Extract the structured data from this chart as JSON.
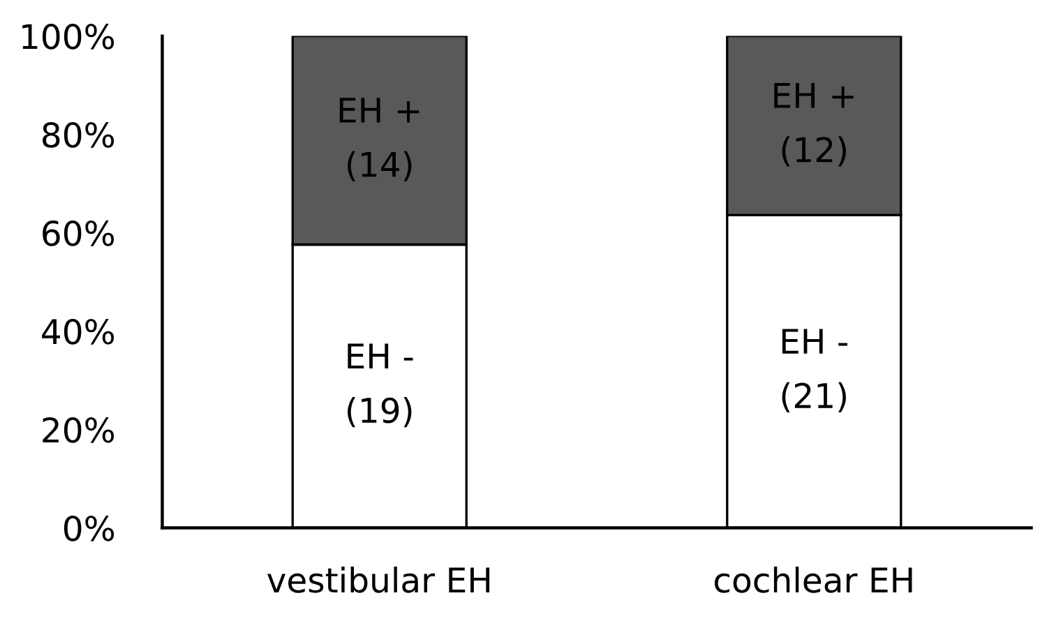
{
  "chart_data": {
    "type": "bar",
    "stacked": true,
    "categories": [
      "vestibular EH",
      "cochlear EH"
    ],
    "series": [
      {
        "name": "EH -",
        "color": "#ffffff",
        "values": [
          57.6,
          63.6
        ]
      },
      {
        "name": "EH +",
        "color": "#595959",
        "values": [
          42.4,
          36.4
        ]
      }
    ],
    "ylim": [
      0,
      100
    ],
    "yticks": [
      {
        "value": 0,
        "label": "0%"
      },
      {
        "value": 20,
        "label": "20%"
      },
      {
        "value": 40,
        "label": "40%"
      },
      {
        "value": 60,
        "label": "60%"
      },
      {
        "value": 80,
        "label": "80%"
      },
      {
        "value": 100,
        "label": "100%"
      }
    ],
    "annotations": [
      "(19)",
      "(21)",
      "(14)",
      "(12)"
    ],
    "grid": false,
    "legend": false
  }
}
